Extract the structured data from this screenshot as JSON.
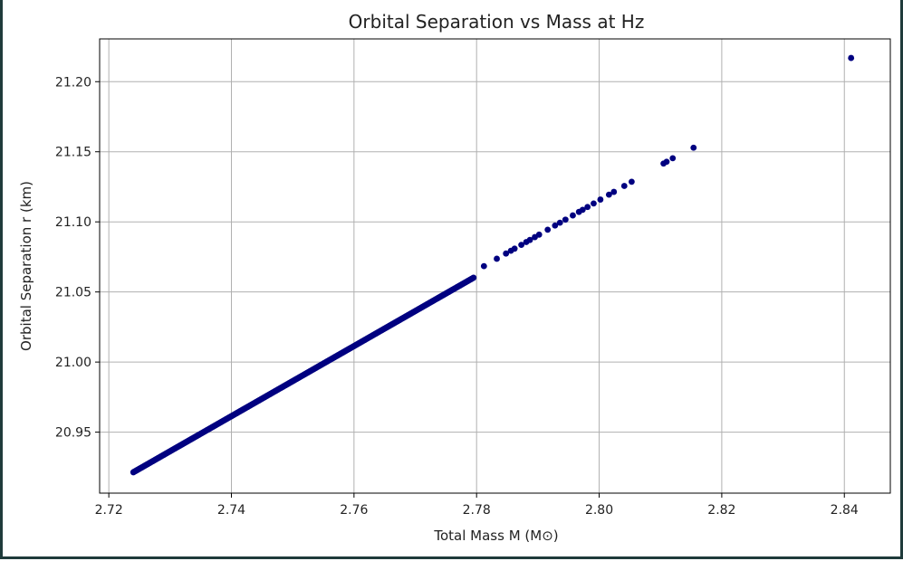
{
  "chart_data": {
    "type": "scatter",
    "title": "Orbital Separation vs Mass at Hz",
    "xlabel": "Total Mass M (M⊙)",
    "ylabel": "Orbital Separation r (km)",
    "xlim": [
      2.7185,
      2.8475
    ],
    "ylim": [
      20.9065,
      21.2305
    ],
    "xticks": [
      "2.72",
      "2.74",
      "2.76",
      "2.78",
      "2.80",
      "2.82",
      "2.84"
    ],
    "yticks": [
      "20.95",
      "21.00",
      "21.05",
      "21.10",
      "21.15",
      "21.20"
    ],
    "grid": true,
    "marker_color": "#000080",
    "line_fit": {
      "x0": 2.724,
      "y0": 20.9214,
      "slope": 2.5
    },
    "dense_range": {
      "x_start": 2.724,
      "x_end": 2.7795,
      "points": 370
    },
    "x": [
      2.7812,
      2.7833,
      2.7848,
      2.7856,
      2.7862,
      2.7873,
      2.7881,
      2.7887,
      2.7895,
      2.7902,
      2.7916,
      2.7928,
      2.7936,
      2.7945,
      2.7957,
      2.7967,
      2.7973,
      2.7981,
      2.7991,
      2.8002,
      2.8016,
      2.8024,
      2.8041,
      2.8053,
      2.8105,
      2.811,
      2.812,
      2.8154,
      2.8411
    ],
    "y": [
      21.0684,
      21.0737,
      21.0774,
      21.0794,
      21.0809,
      21.0836,
      21.0856,
      21.0871,
      21.0891,
      21.0909,
      21.0944,
      21.0974,
      21.0994,
      21.1016,
      21.1046,
      21.1071,
      21.1086,
      21.1106,
      21.1131,
      21.1159,
      21.1194,
      21.1214,
      21.1256,
      21.1286,
      21.1416,
      21.1429,
      21.1454,
      21.1529,
      21.2169
    ]
  }
}
